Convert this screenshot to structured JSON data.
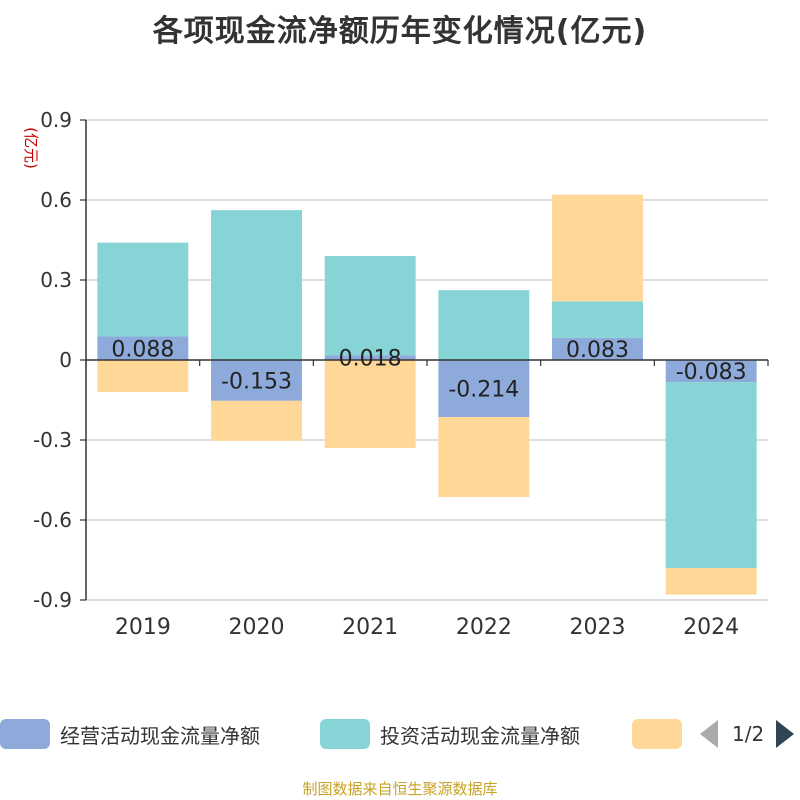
{
  "chart_data": {
    "type": "bar",
    "stacked": true,
    "title": "各项现金流净额历年变化情况(亿元)",
    "ylabel": "(亿元)",
    "xlabel": "",
    "ylim": [
      -0.9,
      0.9
    ],
    "yticks": [
      0.9,
      0.6,
      0.3,
      0,
      -0.3,
      -0.6,
      -0.9
    ],
    "ytick_labels": [
      "0.9",
      "0.6",
      "0.3",
      "0",
      "-0.3",
      "-0.6",
      "-0.9"
    ],
    "grid": true,
    "categories": [
      "2019",
      "2020",
      "2021",
      "2022",
      "2023",
      "2024"
    ],
    "series": [
      {
        "name": "经营活动现金流量净额",
        "color": "#8eaadb",
        "values": [
          0.088,
          -0.153,
          0.018,
          -0.214,
          0.083,
          -0.083
        ],
        "data_labels": [
          "0.088",
          "-0.153",
          "0.018",
          "-0.214",
          "0.083",
          "-0.083"
        ]
      },
      {
        "name": "投资活动现金流量净额",
        "color": "#87d4d6",
        "values": [
          0.352,
          0.562,
          0.372,
          0.262,
          0.137,
          -0.697
        ]
      },
      {
        "name": "",
        "color": "#ffd898",
        "values": [
          -0.12,
          -0.15,
          -0.33,
          -0.3,
          0.4,
          -0.1
        ]
      }
    ],
    "legend_position": "bottom"
  },
  "legend": {
    "pager_text": "1/2"
  },
  "source_text": "制图数据来自恒生聚源数据库"
}
